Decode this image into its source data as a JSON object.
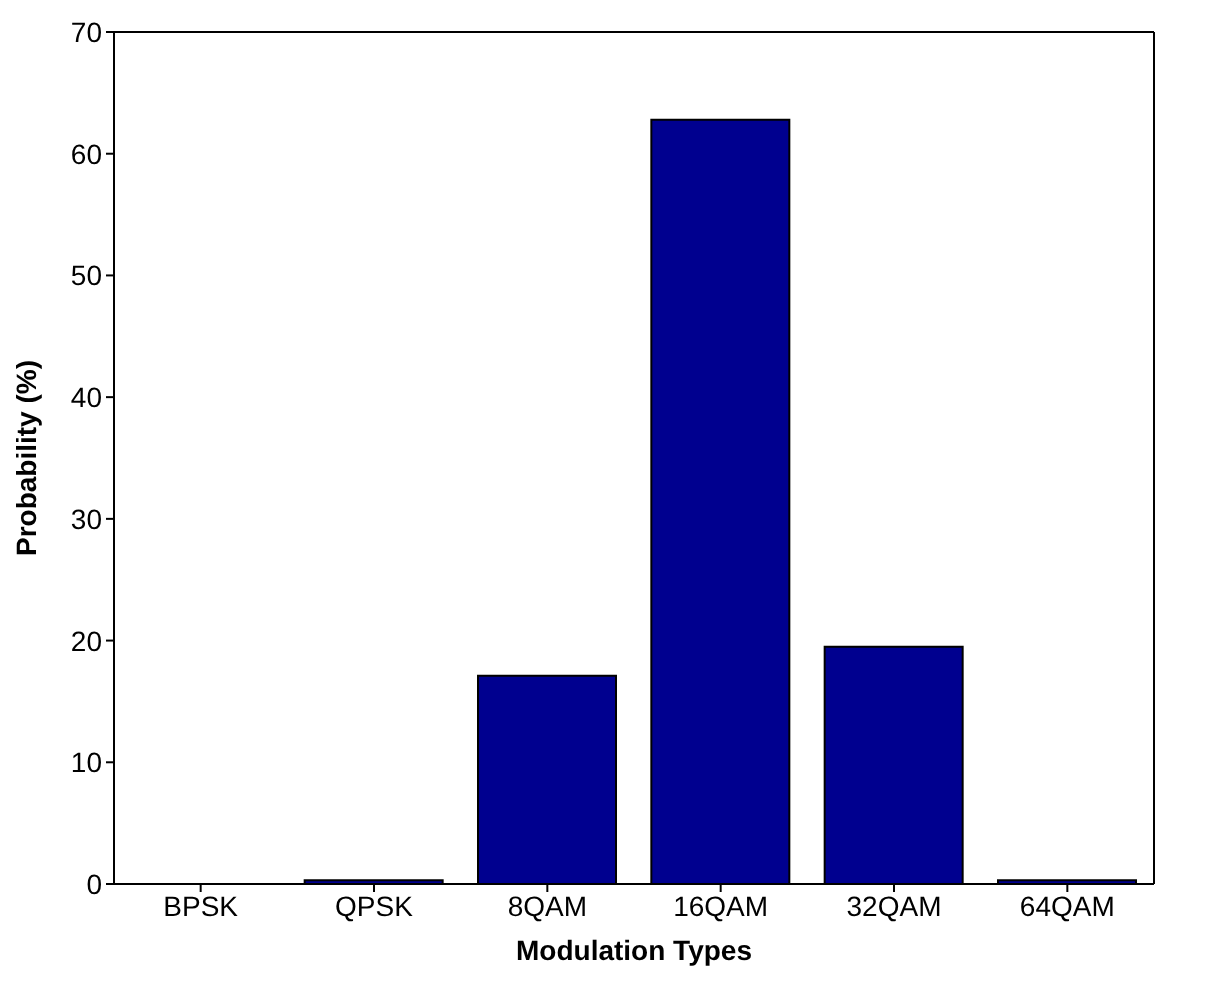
{
  "chart_data": {
    "type": "bar",
    "xlabel": "Modulation Types",
    "ylabel": "Probability (%)",
    "categories": [
      "BPSK",
      "QPSK",
      "8QAM",
      "16QAM",
      "32QAM",
      "64QAM"
    ],
    "values": [
      0,
      0.3,
      17.1,
      62.8,
      19.5,
      0.3
    ],
    "color": "#00008f",
    "ylim": [
      0,
      70
    ],
    "yticks": [
      0,
      10,
      20,
      30,
      40,
      50,
      60,
      70
    ],
    "grid": false
  }
}
